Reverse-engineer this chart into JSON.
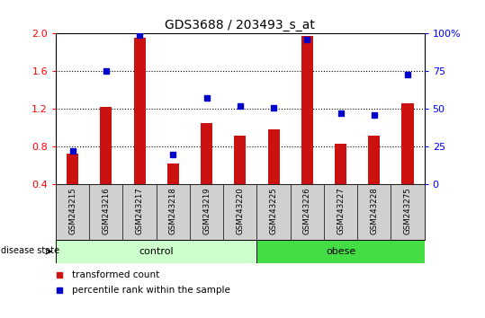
{
  "title": "GDS3688 / 203493_s_at",
  "samples": [
    "GSM243215",
    "GSM243216",
    "GSM243217",
    "GSM243218",
    "GSM243219",
    "GSM243220",
    "GSM243225",
    "GSM243226",
    "GSM243227",
    "GSM243228",
    "GSM243275"
  ],
  "red_values": [
    0.73,
    1.22,
    1.95,
    0.62,
    1.05,
    0.92,
    0.98,
    1.97,
    0.83,
    0.92,
    1.26
  ],
  "blue_pct": [
    22,
    75,
    99,
    20,
    57,
    52,
    51,
    96,
    47,
    46,
    73
  ],
  "ylim_left": [
    0.4,
    2.0
  ],
  "ylim_right": [
    0,
    100
  ],
  "yticks_left": [
    0.4,
    0.8,
    1.2,
    1.6,
    2.0
  ],
  "ytick_labels_right": [
    "0",
    "25",
    "50",
    "75",
    "100%"
  ],
  "ytick_vals_right": [
    0,
    25,
    50,
    75,
    100
  ],
  "grid_yticks": [
    0.8,
    1.2,
    1.6
  ],
  "control_count": 6,
  "obese_count": 5,
  "control_label": "control",
  "obese_label": "obese",
  "disease_state_label": "disease state",
  "red_legend": "transformed count",
  "blue_legend": "percentile rank within the sample",
  "bar_color": "#cc1111",
  "dot_color": "#0000cc",
  "bar_width": 0.35,
  "sample_bg": "#d0d0d0",
  "control_bg": "#ccffcc",
  "obese_bg": "#44dd44"
}
